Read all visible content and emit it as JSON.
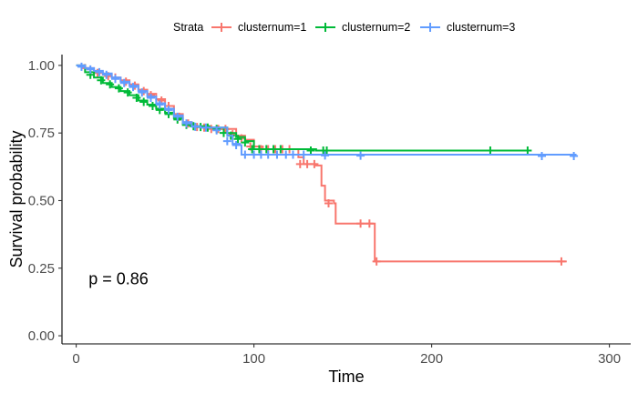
{
  "chart_data": {
    "type": "line",
    "subtype": "kaplan-meier",
    "xlabel": "Time",
    "ylabel": "Survival probability",
    "xlim": [
      -8,
      312
    ],
    "ylim": [
      -0.03,
      1.04
    ],
    "x_ticks": [
      0,
      100,
      200,
      300
    ],
    "x_tick_labels": [
      "0",
      "100",
      "200",
      "300"
    ],
    "y_ticks": [
      0,
      0.25,
      0.5,
      0.75,
      1.0
    ],
    "y_tick_labels": [
      "0.00",
      "0.25",
      "0.50",
      "0.75",
      "1.00"
    ],
    "grid": false,
    "legend": {
      "title": "Strata",
      "position": "top"
    },
    "annotations": [
      {
        "text": "p = 0.86",
        "x": 7,
        "y": 0.19
      }
    ],
    "series": [
      {
        "name": "clusternum=1",
        "color": "#F8766D",
        "steps": [
          [
            0,
            1.0
          ],
          [
            5,
            0.99
          ],
          [
            10,
            0.975
          ],
          [
            15,
            0.965
          ],
          [
            20,
            0.955
          ],
          [
            25,
            0.945
          ],
          [
            30,
            0.93
          ],
          [
            35,
            0.91
          ],
          [
            40,
            0.895
          ],
          [
            45,
            0.875
          ],
          [
            50,
            0.85
          ],
          [
            55,
            0.82
          ],
          [
            60,
            0.79
          ],
          [
            65,
            0.775
          ],
          [
            70,
            0.77
          ],
          [
            80,
            0.765
          ],
          [
            90,
            0.74
          ],
          [
            95,
            0.725
          ],
          [
            100,
            0.7
          ],
          [
            105,
            0.69
          ],
          [
            125,
            0.66
          ],
          [
            128,
            0.635
          ],
          [
            135,
            0.63
          ],
          [
            138,
            0.555
          ],
          [
            140,
            0.5
          ],
          [
            145,
            0.49
          ],
          [
            146,
            0.415
          ],
          [
            168,
            0.275
          ],
          [
            276,
            0.275
          ]
        ],
        "censor_x": [
          5,
          12,
          18,
          22,
          28,
          33,
          38,
          42,
          48,
          52,
          58,
          63,
          68,
          72,
          76,
          80,
          84,
          88,
          93,
          98,
          104,
          108,
          112,
          116,
          120,
          126,
          130,
          134,
          142,
          160,
          165,
          169,
          273
        ],
        "censor_y": [
          0.99,
          0.972,
          0.96,
          0.955,
          0.94,
          0.925,
          0.905,
          0.89,
          0.87,
          0.85,
          0.81,
          0.785,
          0.772,
          0.77,
          0.765,
          0.765,
          0.765,
          0.745,
          0.73,
          0.7,
          0.69,
          0.69,
          0.69,
          0.69,
          0.69,
          0.635,
          0.635,
          0.635,
          0.49,
          0.415,
          0.415,
          0.275,
          0.275
        ]
      },
      {
        "name": "clusternum=2",
        "color": "#00BA38",
        "steps": [
          [
            0,
            1.0
          ],
          [
            5,
            0.975
          ],
          [
            10,
            0.955
          ],
          [
            15,
            0.935
          ],
          [
            20,
            0.92
          ],
          [
            25,
            0.905
          ],
          [
            30,
            0.89
          ],
          [
            35,
            0.87
          ],
          [
            40,
            0.855
          ],
          [
            45,
            0.84
          ],
          [
            50,
            0.825
          ],
          [
            55,
            0.805
          ],
          [
            60,
            0.78
          ],
          [
            65,
            0.775
          ],
          [
            75,
            0.77
          ],
          [
            85,
            0.75
          ],
          [
            90,
            0.735
          ],
          [
            95,
            0.72
          ],
          [
            100,
            0.69
          ],
          [
            135,
            0.685
          ],
          [
            256,
            0.685
          ]
        ],
        "censor_x": [
          8,
          14,
          19,
          24,
          29,
          34,
          38,
          43,
          47,
          52,
          57,
          62,
          66,
          70,
          74,
          79,
          83,
          87,
          91,
          95,
          99,
          103,
          107,
          111,
          115,
          132,
          139,
          141,
          233,
          254
        ],
        "censor_y": [
          0.965,
          0.945,
          0.93,
          0.915,
          0.9,
          0.88,
          0.865,
          0.85,
          0.835,
          0.82,
          0.8,
          0.78,
          0.775,
          0.772,
          0.77,
          0.765,
          0.75,
          0.74,
          0.728,
          0.715,
          0.69,
          0.69,
          0.69,
          0.69,
          0.69,
          0.685,
          0.685,
          0.685,
          0.685,
          0.685
        ]
      },
      {
        "name": "clusternum=3",
        "color": "#619CFF",
        "steps": [
          [
            0,
            1.0
          ],
          [
            5,
            0.99
          ],
          [
            10,
            0.98
          ],
          [
            15,
            0.97
          ],
          [
            20,
            0.955
          ],
          [
            25,
            0.94
          ],
          [
            30,
            0.925
          ],
          [
            35,
            0.905
          ],
          [
            40,
            0.885
          ],
          [
            45,
            0.86
          ],
          [
            50,
            0.84
          ],
          [
            55,
            0.815
          ],
          [
            60,
            0.79
          ],
          [
            65,
            0.775
          ],
          [
            70,
            0.77
          ],
          [
            85,
            0.74
          ],
          [
            88,
            0.71
          ],
          [
            92,
            0.705
          ],
          [
            93,
            0.67
          ],
          [
            281,
            0.665
          ]
        ],
        "censor_x": [
          3,
          8,
          13,
          17,
          22,
          27,
          32,
          37,
          42,
          47,
          52,
          57,
          62,
          67,
          73,
          79,
          85,
          90,
          95,
          100,
          104,
          108,
          113,
          118,
          122,
          128,
          140,
          160,
          262,
          280
        ],
        "censor_y": [
          0.995,
          0.985,
          0.975,
          0.965,
          0.95,
          0.935,
          0.92,
          0.9,
          0.88,
          0.855,
          0.835,
          0.81,
          0.785,
          0.773,
          0.77,
          0.76,
          0.72,
          0.705,
          0.67,
          0.67,
          0.67,
          0.67,
          0.67,
          0.67,
          0.67,
          0.67,
          0.667,
          0.666,
          0.665,
          0.665
        ]
      }
    ]
  }
}
